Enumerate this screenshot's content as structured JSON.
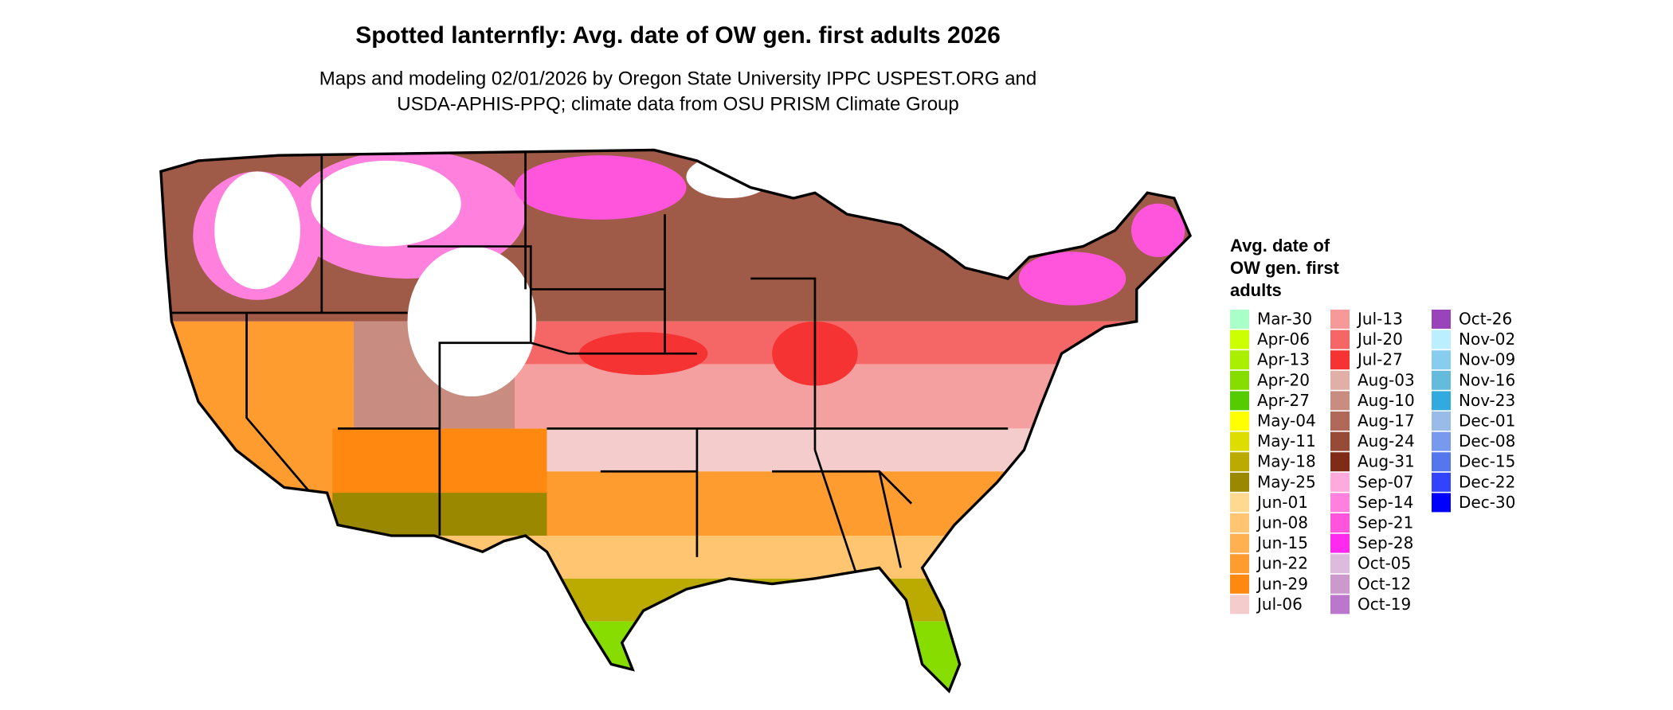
{
  "title": "Spotted lanternfly: Avg. date of OW gen. first adults 2026",
  "subtitle": [
    "Maps and modeling 02/01/2026 by Oregon State University IPPC USPEST.ORG and",
    "USDA-APHIS-PPQ; climate data from OSU PRISM Climate Group"
  ],
  "legend": {
    "title": [
      "Avg. date of",
      "OW gen. first",
      "adults"
    ],
    "items": [
      {
        "label": "Mar-30",
        "color": "#aaffc8"
      },
      {
        "label": "Apr-06",
        "color": "#ccff00"
      },
      {
        "label": "Apr-13",
        "color": "#aaee00"
      },
      {
        "label": "Apr-20",
        "color": "#88dd00"
      },
      {
        "label": "Apr-27",
        "color": "#55cc00"
      },
      {
        "label": "May-04",
        "color": "#ffff00"
      },
      {
        "label": "May-11",
        "color": "#dddd00"
      },
      {
        "label": "May-18",
        "color": "#bbaa00"
      },
      {
        "label": "May-25",
        "color": "#998800"
      },
      {
        "label": "Jun-01",
        "color": "#ffd990"
      },
      {
        "label": "Jun-08",
        "color": "#ffc570"
      },
      {
        "label": "Jun-15",
        "color": "#ffb050"
      },
      {
        "label": "Jun-22",
        "color": "#ff9c30"
      },
      {
        "label": "Jun-29",
        "color": "#ff8810"
      },
      {
        "label": "Jul-06",
        "color": "#f5cccc"
      },
      {
        "label": "Jul-13",
        "color": "#f59999"
      },
      {
        "label": "Jul-20",
        "color": "#f56666"
      },
      {
        "label": "Jul-27",
        "color": "#f53333"
      },
      {
        "label": "Aug-03",
        "color": "#e0b0a8"
      },
      {
        "label": "Aug-10",
        "color": "#c88c80"
      },
      {
        "label": "Aug-17",
        "color": "#b06858"
      },
      {
        "label": "Aug-24",
        "color": "#984a38"
      },
      {
        "label": "Aug-31",
        "color": "#802a18"
      },
      {
        "label": "Sep-07",
        "color": "#ffaadd"
      },
      {
        "label": "Sep-14",
        "color": "#ff80dd"
      },
      {
        "label": "Sep-21",
        "color": "#ff55dd"
      },
      {
        "label": "Sep-28",
        "color": "#ff2aee"
      },
      {
        "label": "Oct-05",
        "color": "#ddbbdd"
      },
      {
        "label": "Oct-12",
        "color": "#cc99cc"
      },
      {
        "label": "Oct-19",
        "color": "#bb77cc"
      },
      {
        "label": "Oct-26",
        "color": "#9944bb"
      },
      {
        "label": "Nov-02",
        "color": "#bbeeff"
      },
      {
        "label": "Nov-09",
        "color": "#88ccee"
      },
      {
        "label": "Nov-16",
        "color": "#66bbdd"
      },
      {
        "label": "Nov-23",
        "color": "#33aadd"
      },
      {
        "label": "Dec-01",
        "color": "#99bbe8"
      },
      {
        "label": "Dec-08",
        "color": "#7799ee"
      },
      {
        "label": "Dec-15",
        "color": "#5577ee"
      },
      {
        "label": "Dec-22",
        "color": "#3344ff"
      },
      {
        "label": "Dec-30",
        "color": "#0000ff"
      }
    ]
  }
}
